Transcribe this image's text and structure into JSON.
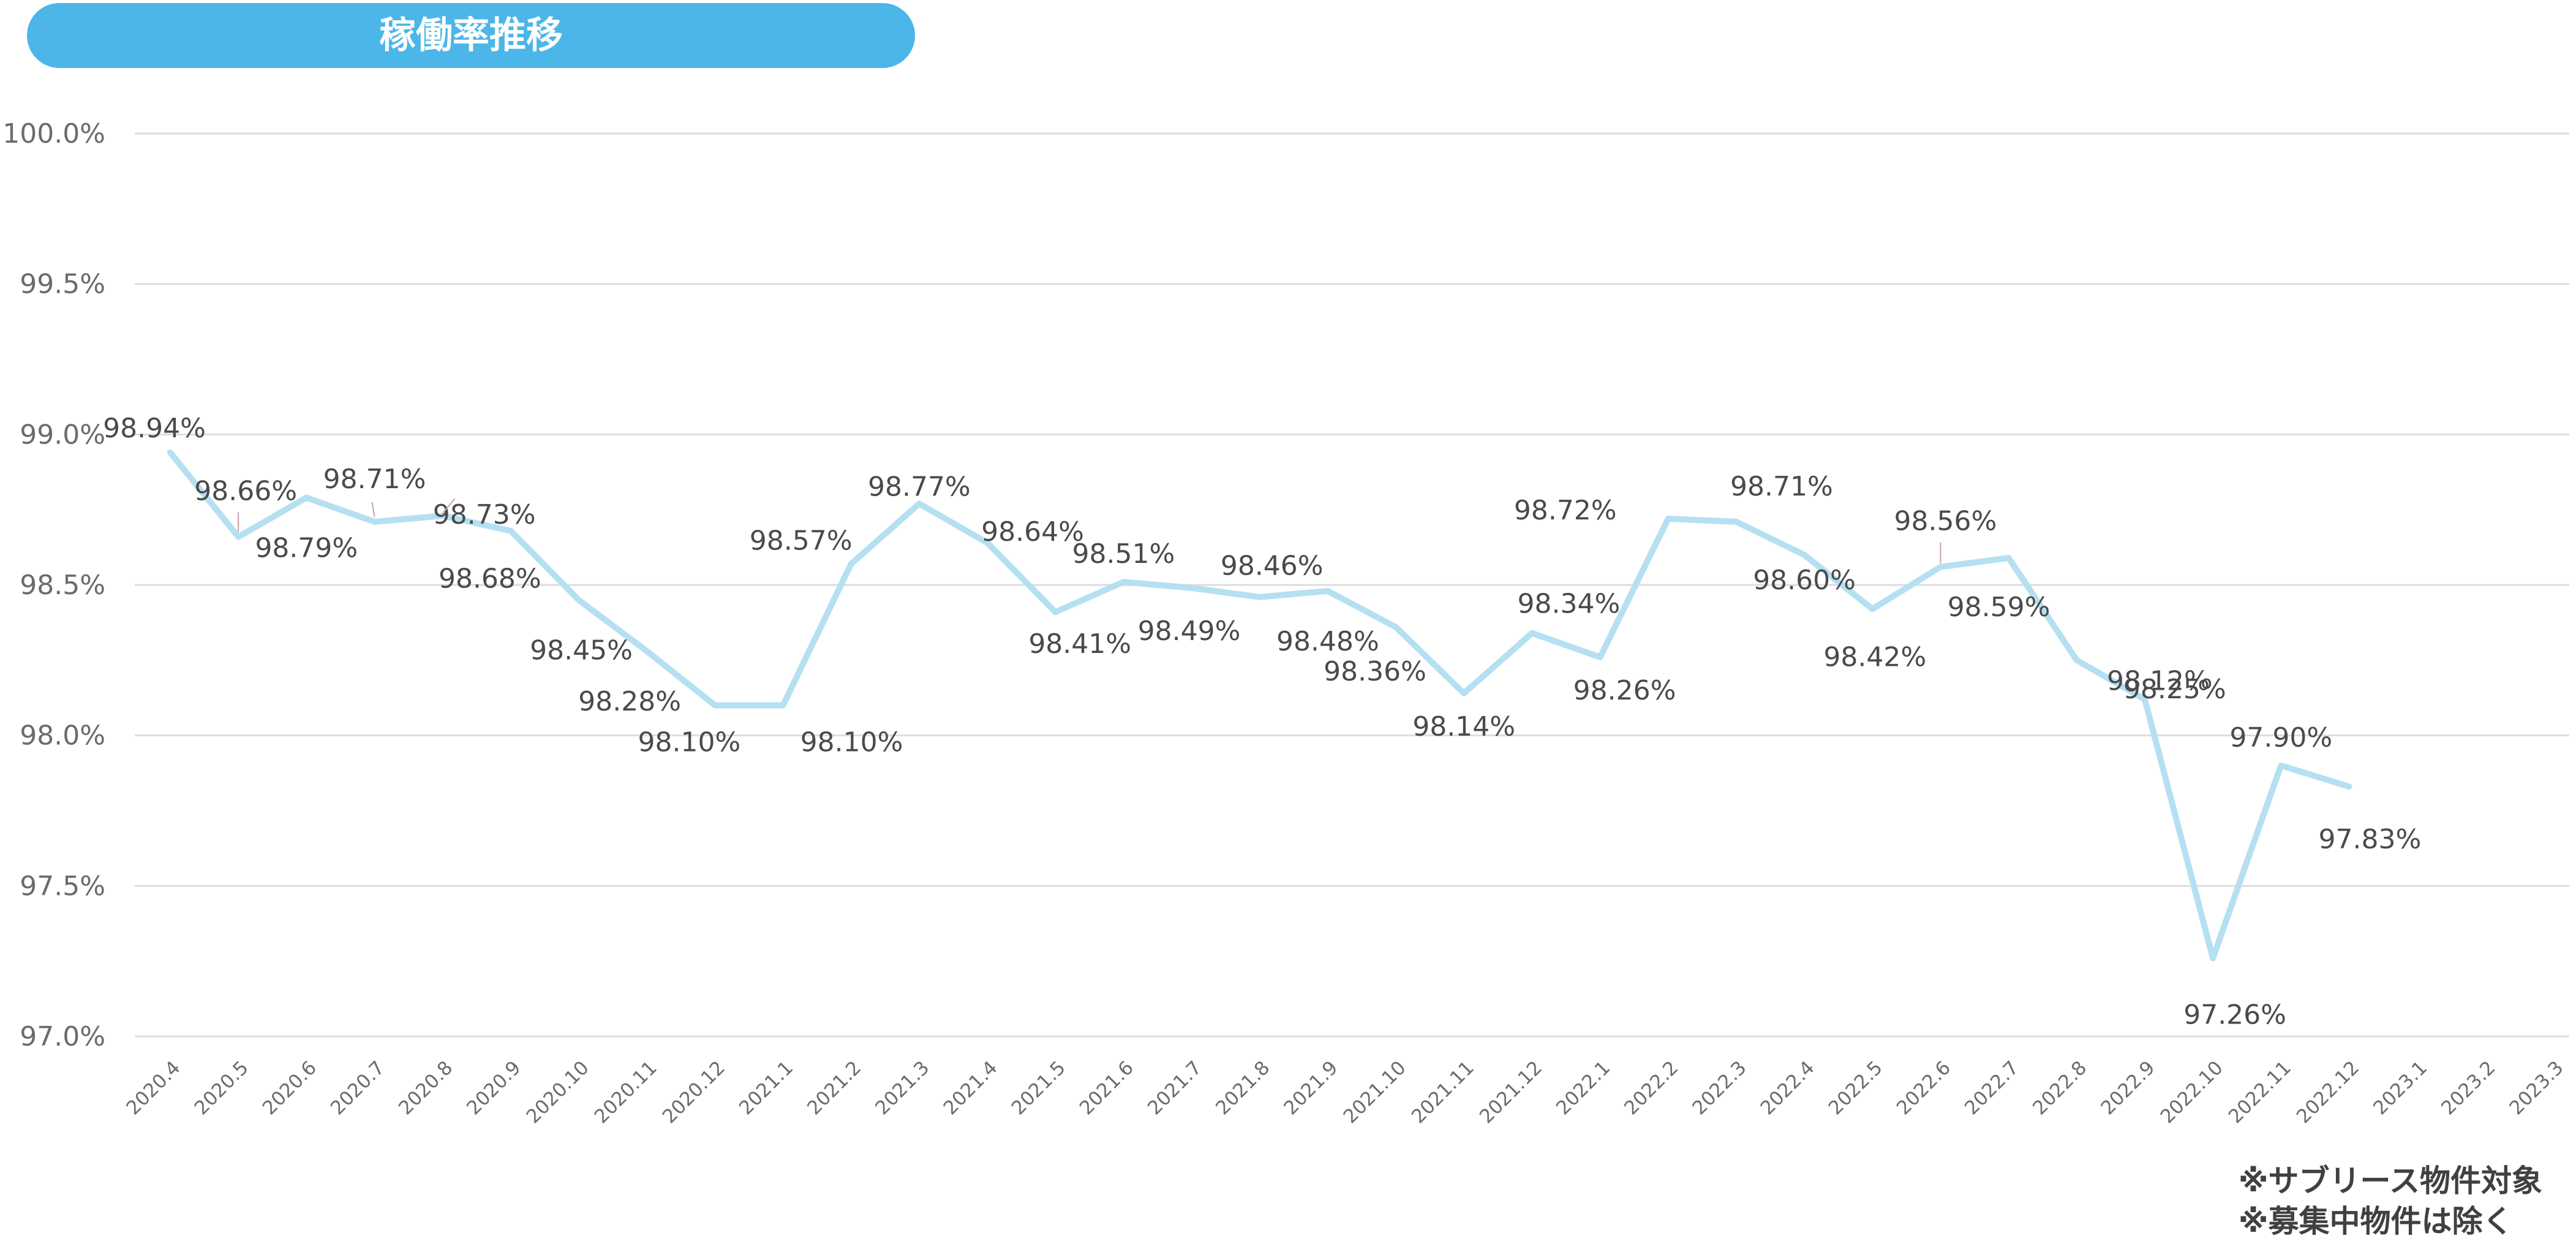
{
  "chart_data": {
    "type": "line",
    "title": "稼働率推移",
    "xlabel": "",
    "ylabel": "",
    "ylim": [
      97.0,
      100.0
    ],
    "yticks": [
      "97.0%",
      "97.5%",
      "98.0%",
      "98.5%",
      "99.0%",
      "99.5%",
      "100.0%"
    ],
    "ytick_values": [
      97.0,
      97.5,
      98.0,
      98.5,
      99.0,
      99.5,
      100.0
    ],
    "grid": true,
    "legend": "none",
    "categories": [
      "2020.4",
      "2020.5",
      "2020.6",
      "2020.7",
      "2020.8",
      "2020.9",
      "2020.10",
      "2020.11",
      "2020.12",
      "2021.1",
      "2021.2",
      "2021.3",
      "2021.4",
      "2021.5",
      "2021.6",
      "2021.7",
      "2021.8",
      "2021.9",
      "2021.10",
      "2021.11",
      "2021.12",
      "2022.1",
      "2022.2",
      "2022.3",
      "2022.4",
      "2022.5",
      "2022.6",
      "2022.7",
      "2022.8",
      "2022.9",
      "2022.10",
      "2022.11",
      "2022.12",
      "2023.1",
      "2023.2",
      "2023.3"
    ],
    "series": [
      {
        "values": [
          98.94,
          98.66,
          98.79,
          98.71,
          98.73,
          98.68,
          98.45,
          98.28,
          98.1,
          98.1,
          98.57,
          98.77,
          98.64,
          98.41,
          98.51,
          98.49,
          98.46,
          98.48,
          98.36,
          98.14,
          98.34,
          98.26,
          98.72,
          98.71,
          98.6,
          98.42,
          98.56,
          98.59,
          98.25,
          98.12,
          97.26,
          97.9,
          97.83,
          null,
          null,
          null
        ],
        "labels": [
          "98.94%",
          "98.66%",
          "98.79%",
          "98.71%",
          "98.73%",
          "98.68%",
          "98.45%",
          "98.28%",
          "98.10%",
          "98.10%",
          "98.57%",
          "98.77%",
          "98.64%",
          "98.41%",
          "98.51%",
          "98.49%",
          "98.46%",
          "98.48%",
          "98.36%",
          "98.14%",
          "98.34%",
          "98.26%",
          "98.72%",
          "98.71%",
          "98.60%",
          "98.42%",
          "98.56%",
          "98.59%",
          "98.25%",
          "98.12%",
          "97.26%",
          "97.90%",
          "97.83%",
          null,
          null,
          null
        ],
        "color": "#b5e0f2"
      }
    ],
    "colors": {
      "title_bg": "#4bb6e7",
      "title_text": "#ffffff",
      "grid": "#dddddd",
      "line": "#b5e0f2",
      "tick_text": "#6b6b6b",
      "label_text": "#4a4a4a",
      "leader": "#c8a0a8"
    }
  },
  "notes": [
    "※サブリース物件対象",
    "※募集中物件は除く"
  ]
}
